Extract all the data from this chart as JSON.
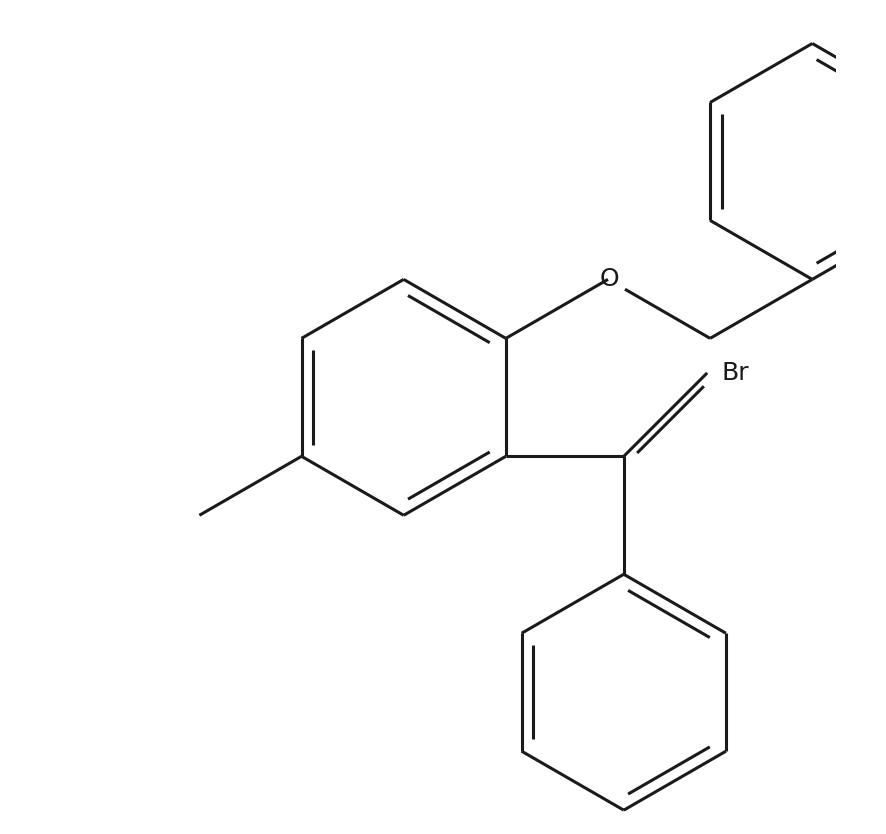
{
  "background_color": "#ffffff",
  "line_color": "#1a1a1a",
  "line_width": 2.2,
  "font_size": 18,
  "figsize": [
    8.86,
    8.34
  ],
  "dpi": 100,
  "xlim": [
    -4.5,
    5.5
  ],
  "ylim": [
    -5.0,
    5.5
  ]
}
